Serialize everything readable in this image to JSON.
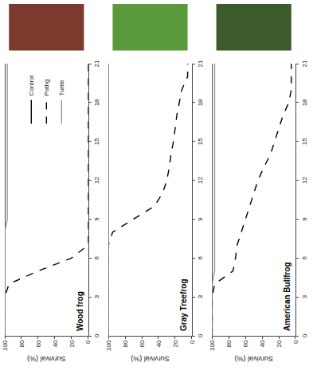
{
  "chart_data": [
    {
      "type": "line",
      "title": "Wood frog",
      "y_label": "Survival (%)",
      "x": [
        0,
        1,
        2,
        3,
        4,
        5,
        6,
        7,
        8,
        9,
        10,
        11,
        12,
        13,
        14,
        15,
        16,
        17,
        18,
        19,
        20,
        21
      ],
      "series": [
        {
          "name": "Control",
          "color": "#000000",
          "line_style": "solid",
          "values": [
            100,
            100,
            100,
            100,
            100,
            100,
            100,
            100,
            100,
            100,
            100,
            100,
            100,
            100,
            100,
            100,
            100,
            100,
            100,
            100,
            100,
            100
          ]
        },
        {
          "name": "Pathg",
          "color": "#000000",
          "line_style": "dash",
          "values": [
            100,
            100,
            100,
            100,
            95,
            60,
            20,
            0,
            0,
            0,
            0,
            0,
            0,
            0,
            0,
            0,
            0,
            0,
            0,
            0,
            0,
            0
          ]
        },
        {
          "name": "Turtle",
          "color": "#999999",
          "line_style": "solid",
          "values": [
            100,
            100,
            100,
            100,
            100,
            100,
            100,
            100,
            100,
            97,
            97,
            97,
            97,
            97,
            97,
            97,
            97,
            97,
            97,
            97,
            97,
            97
          ]
        }
      ],
      "xlim": [
        0,
        21
      ],
      "ylim": [
        0,
        100
      ],
      "xticks": [
        0,
        3,
        6,
        9,
        12,
        15,
        18,
        21
      ],
      "yticks": [
        0,
        20,
        40,
        60,
        80,
        100
      ],
      "legend": "right"
    },
    {
      "type": "line",
      "title": "Gray Treefrog",
      "y_label": "Survival (%)",
      "x": [
        0,
        1,
        2,
        3,
        4,
        5,
        6,
        7,
        8,
        9,
        10,
        11,
        12,
        13,
        14,
        15,
        16,
        17,
        18,
        19,
        20,
        21
      ],
      "series": [
        {
          "color": "#000000",
          "line_style": "solid",
          "values": [
            100,
            100,
            100,
            100,
            100,
            100,
            100,
            100,
            100,
            100,
            100,
            100,
            100,
            100,
            100,
            100,
            100,
            100,
            100,
            100,
            100,
            100
          ]
        },
        {
          "color": "#000000",
          "line_style": "dash",
          "values": [
            100,
            100,
            100,
            100,
            100,
            100,
            100,
            100,
            95,
            70,
            45,
            35,
            30,
            27,
            25,
            22,
            20,
            18,
            15,
            12,
            5,
            5
          ]
        },
        {
          "color": "#999999",
          "line_style": "solid",
          "values": [
            100,
            100,
            100,
            100,
            100,
            100,
            100,
            100,
            100,
            100,
            100,
            100,
            100,
            100,
            100,
            100,
            100,
            100,
            100,
            100,
            100,
            100
          ]
        }
      ],
      "xlim": [
        0,
        21
      ],
      "ylim": [
        0,
        100
      ],
      "xticks": [
        0,
        3,
        6,
        9,
        12,
        15,
        18,
        21
      ],
      "yticks": [
        0,
        20,
        40,
        60,
        80,
        100
      ]
    },
    {
      "type": "line",
      "title": "American Bullfrog",
      "y_label": "Survival (%)",
      "x": [
        0,
        1,
        2,
        3,
        4,
        5,
        6,
        7,
        8,
        9,
        10,
        11,
        12,
        13,
        14,
        15,
        16,
        17,
        18,
        19,
        20,
        21
      ],
      "series": [
        {
          "color": "#000000",
          "line_style": "solid",
          "values": [
            100,
            100,
            100,
            100,
            100,
            100,
            100,
            100,
            100,
            100,
            100,
            100,
            100,
            100,
            100,
            100,
            100,
            100,
            100,
            100,
            100,
            100
          ]
        },
        {
          "color": "#000000",
          "line_style": "dash",
          "values": [
            100,
            100,
            100,
            100,
            97,
            75,
            72,
            70,
            65,
            60,
            55,
            50,
            45,
            38,
            30,
            25,
            20,
            15,
            8,
            5,
            5,
            5
          ]
        },
        {
          "color": "#999999",
          "line_style": "solid",
          "values": [
            100,
            100,
            100,
            100,
            100,
            97,
            97,
            97,
            97,
            97,
            97,
            97,
            97,
            97,
            97,
            97,
            97,
            97,
            97,
            97,
            97,
            97
          ]
        }
      ],
      "xlim": [
        0,
        21
      ],
      "ylim": [
        0,
        100
      ],
      "xticks": [
        0,
        3,
        6,
        9,
        12,
        15,
        18,
        21
      ],
      "yticks": [
        0,
        20,
        40,
        60,
        80,
        100
      ]
    }
  ]
}
